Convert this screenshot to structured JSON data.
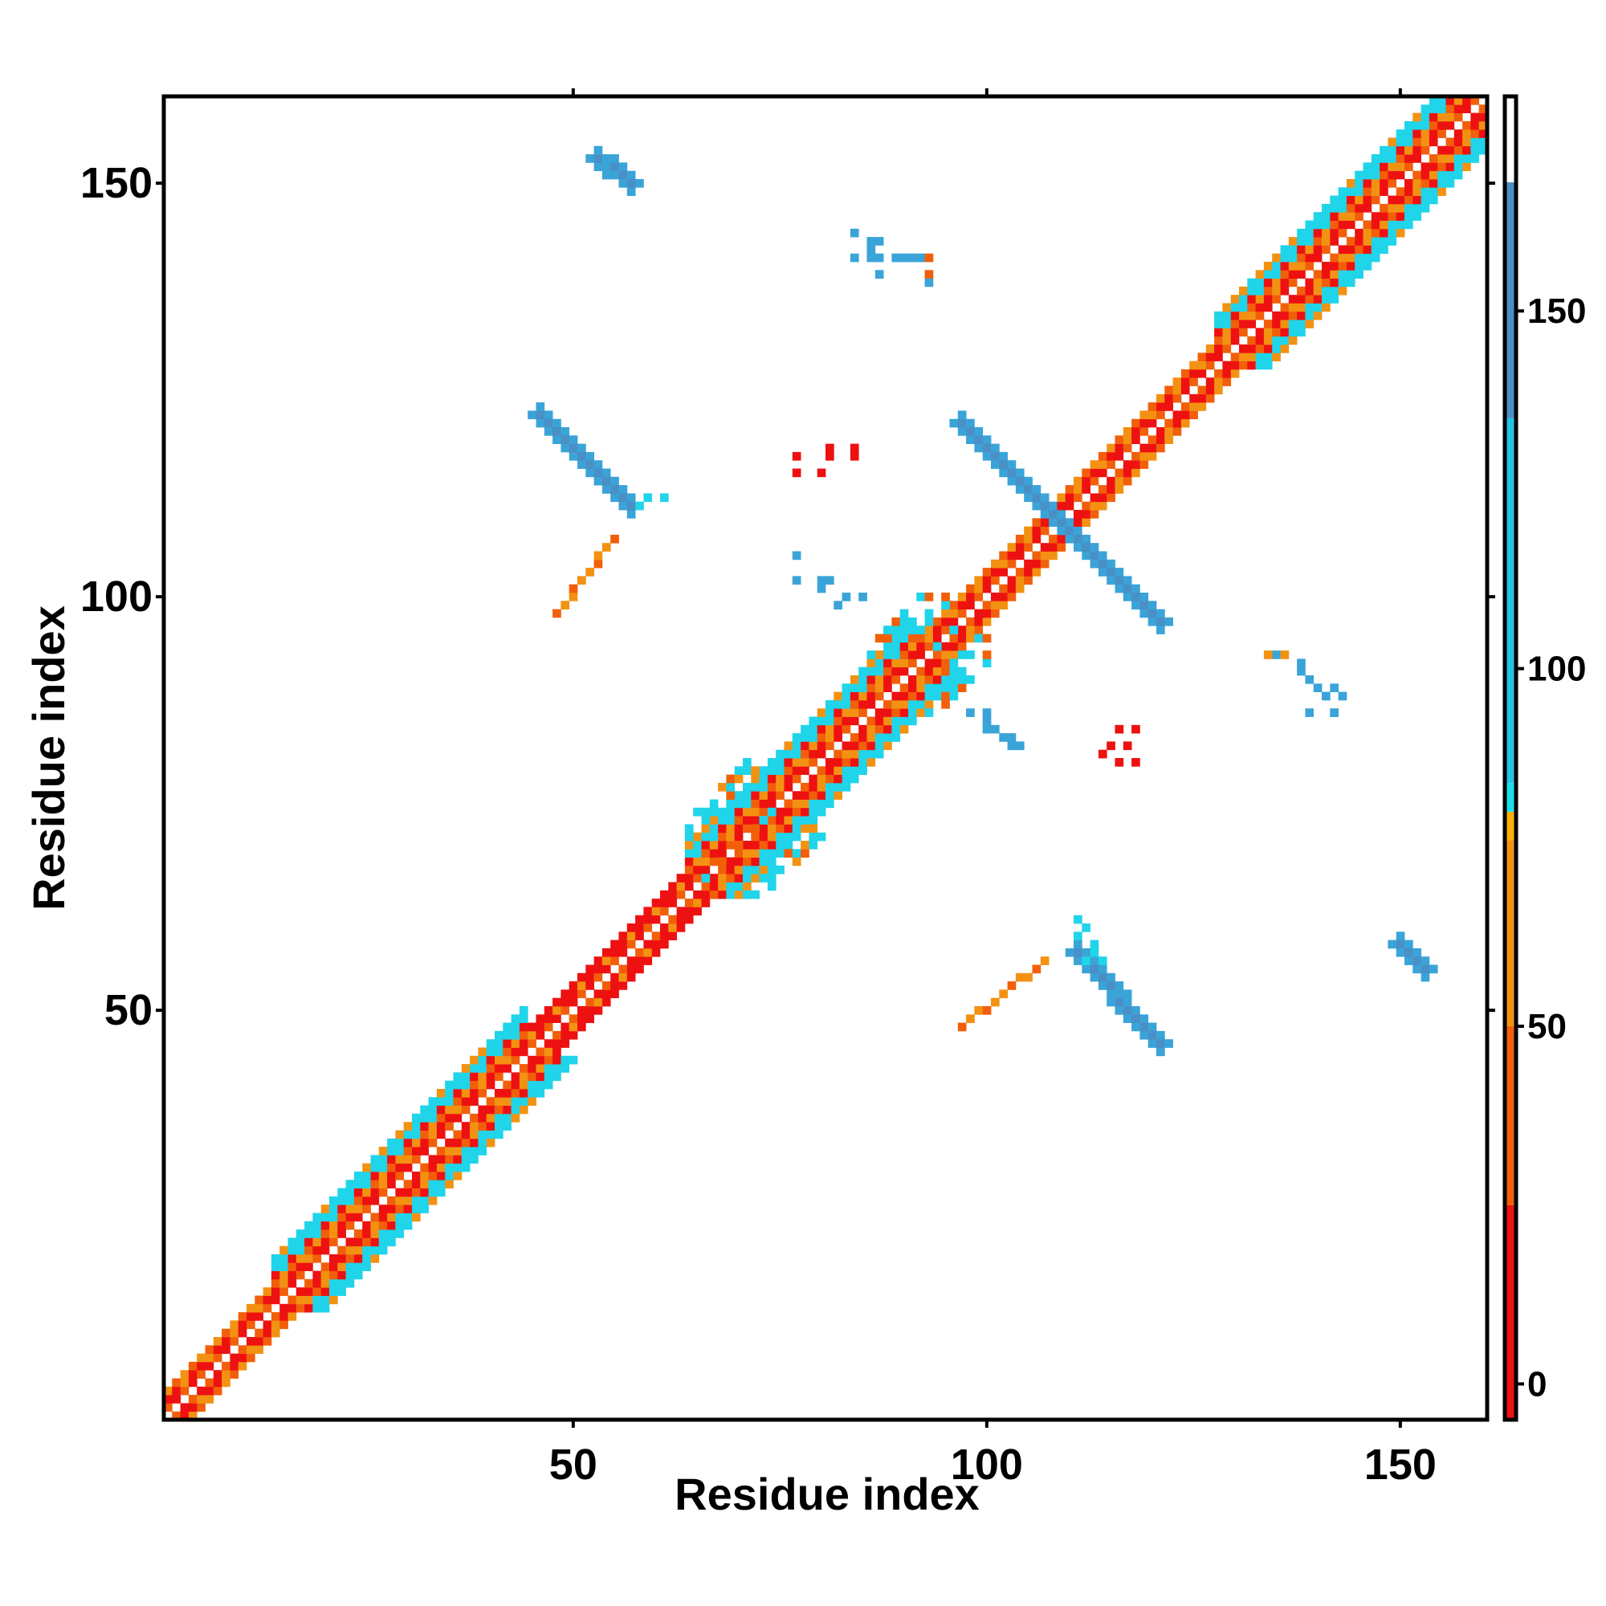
{
  "chart_data": {
    "type": "heatmap",
    "title": "",
    "xlabel": "Residue index",
    "ylabel": "Residue index",
    "xlim": [
      1,
      160
    ],
    "ylim": [
      1,
      160
    ],
    "x_ticks": [
      50,
      100,
      150
    ],
    "y_ticks": [
      50,
      100,
      150
    ],
    "grid": false,
    "colorbar": {
      "placement": "right",
      "ticks": [
        0,
        50,
        100,
        150
      ],
      "range": [
        -5,
        180
      ],
      "bands": [
        {
          "from": -5,
          "to": 25,
          "color": "#ee1111"
        },
        {
          "from": 25,
          "to": 50,
          "color": "#f25f0a"
        },
        {
          "from": 50,
          "to": 76,
          "color": "#f39212"
        },
        {
          "from": 76,
          "to": 80,
          "color": "#ffb000"
        },
        {
          "from": 80,
          "to": 84,
          "color": "#17e0ee"
        },
        {
          "from": 84,
          "to": 135,
          "color": "#20c4e6"
        },
        {
          "from": 135,
          "to": 168,
          "color": "#4a8fc6"
        },
        {
          "from": 168,
          "to": 180,
          "color": "#ffffff"
        }
      ]
    },
    "value_colors": {
      "red": "#ee1111",
      "orange_red": "#f25f0a",
      "orange": "#f39212",
      "cyan": "#20d4ea",
      "light_blue": "#3aa4d8",
      "steel_blue": "#4a8fc6"
    },
    "regions": [
      {
        "name": "diagonal-band",
        "description": "main diagonal contacts",
        "from": [
          2,
          2
        ],
        "to": [
          160,
          160
        ],
        "colors": [
          "red",
          "orange",
          "cyan"
        ]
      },
      {
        "name": "antiparallel-strand-1",
        "from": [
          57,
          151
        ],
        "to": [
          59,
          148
        ],
        "color": "steel_blue"
      },
      {
        "name": "antiparallel-strand-2",
        "from": [
          46,
          122
        ],
        "to": [
          58,
          111
        ],
        "color": "steel_blue"
      },
      {
        "name": "antiparallel-strand-3",
        "from": [
          97,
          122
        ],
        "to": [
          122,
          96
        ],
        "color": "steel_blue"
      },
      {
        "name": "antiparallel-strand-4",
        "from": [
          111,
          57
        ],
        "to": [
          122,
          46
        ],
        "color": "steel_blue"
      },
      {
        "name": "antiparallel-strand-5",
        "from": [
          148,
          58
        ],
        "to": [
          151,
          56
        ],
        "color": "steel_blue"
      },
      {
        "name": "parallel-strand-1",
        "from": [
          48,
          97
        ],
        "to": [
          56,
          107
        ],
        "color": "orange"
      },
      {
        "name": "parallel-strand-2",
        "from": [
          97,
          48
        ],
        "to": [
          107,
          56
        ],
        "color": "orange"
      }
    ]
  }
}
